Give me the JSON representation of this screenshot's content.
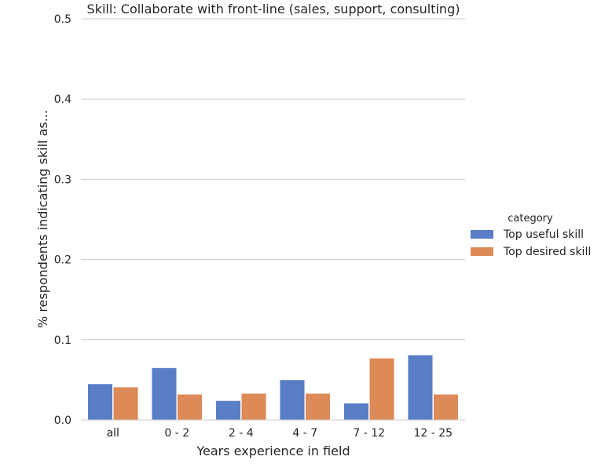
{
  "chart_data": {
    "type": "bar",
    "title": "Skill: Collaborate with front-line (sales, support, consulting)",
    "xlabel": "Years experience in field",
    "ylabel": "% respondents indicating skill as...",
    "ylim": [
      0,
      0.5
    ],
    "yticks": [
      "0.0",
      "0.1",
      "0.2",
      "0.3",
      "0.4",
      "0.5"
    ],
    "ytick_values": [
      0,
      0.1,
      0.2,
      0.3,
      0.4,
      0.5
    ],
    "grid": true,
    "categories": [
      "all",
      "0 - 2",
      "2 - 4",
      "4 - 7",
      "7 - 12",
      "12 - 25"
    ],
    "legend": {
      "title": "category",
      "placement": "right"
    },
    "series": [
      {
        "name": "Top useful skill",
        "color": "#5a7ec6",
        "values": [
          0.045,
          0.065,
          0.024,
          0.05,
          0.021,
          0.081
        ]
      },
      {
        "name": "Top desired skill",
        "color": "#dd8a59",
        "values": [
          0.041,
          0.032,
          0.033,
          0.033,
          0.077,
          0.032
        ]
      }
    ]
  }
}
